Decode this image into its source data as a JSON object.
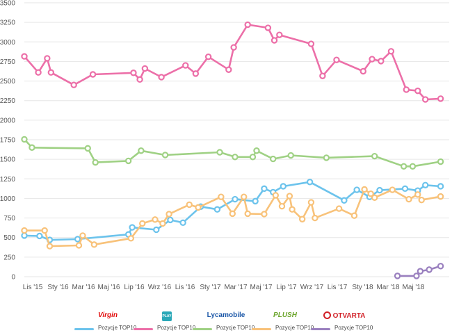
{
  "chart_data": {
    "type": "line",
    "title": "",
    "xlabel": "",
    "ylabel": "",
    "ylim": [
      0,
      3500
    ],
    "yticks": [
      0,
      250,
      500,
      750,
      1000,
      1250,
      1500,
      1750,
      2000,
      2250,
      2500,
      2750,
      3000,
      3250,
      3500
    ],
    "xticks": [
      "Lis '15",
      "Sty '16",
      "Mar '16",
      "Maj '16",
      "Lip '16",
      "Wrz '16",
      "Lis '16",
      "Sty '17",
      "Mar '17",
      "Maj '17",
      "Lip '17",
      "Wrz '17",
      "Lis '17",
      "Sty '18",
      "Mar '18",
      "Maj '18"
    ],
    "xlim": [
      0,
      31.5
    ],
    "grid": true,
    "legend_position": "bottom",
    "series": [
      {
        "name": "Pozycje TOP10",
        "brand": "Virgin Mobile",
        "color": "#6cc3ec",
        "points": [
          [
            0,
            525
          ],
          [
            1.2,
            520
          ],
          [
            2.0,
            470
          ],
          [
            4.2,
            480
          ],
          [
            8.2,
            540
          ],
          [
            8.5,
            630
          ],
          [
            10.4,
            600
          ],
          [
            11.5,
            725
          ],
          [
            12.5,
            690
          ],
          [
            13.9,
            895
          ],
          [
            15.2,
            860
          ],
          [
            16.6,
            990
          ],
          [
            18.2,
            965
          ],
          [
            18.9,
            1125
          ],
          [
            19.6,
            1080
          ],
          [
            20.4,
            1155
          ],
          [
            22.5,
            1210
          ],
          [
            25.2,
            975
          ],
          [
            26.2,
            1110
          ],
          [
            27.2,
            1020
          ],
          [
            28.0,
            1105
          ],
          [
            30.0,
            1125
          ],
          [
            31.0,
            1100
          ],
          [
            31.6,
            1170
          ],
          [
            32.8,
            1155
          ]
        ]
      },
      {
        "name": "Pozycje TOP10",
        "brand": "Play",
        "color": "#ec6fa8",
        "points": [
          [
            0,
            2815
          ],
          [
            1.1,
            2610
          ],
          [
            1.8,
            2790
          ],
          [
            2.1,
            2610
          ],
          [
            3.9,
            2450
          ],
          [
            5.4,
            2585
          ],
          [
            8.6,
            2605
          ],
          [
            9.1,
            2520
          ],
          [
            9.5,
            2660
          ],
          [
            10.8,
            2550
          ],
          [
            12.7,
            2700
          ],
          [
            13.5,
            2595
          ],
          [
            14.5,
            2810
          ],
          [
            16.1,
            2645
          ],
          [
            16.5,
            2930
          ],
          [
            17.6,
            3220
          ],
          [
            19.2,
            3180
          ],
          [
            19.7,
            3020
          ],
          [
            20.1,
            3090
          ],
          [
            22.6,
            2975
          ],
          [
            23.5,
            2565
          ],
          [
            24.6,
            2770
          ],
          [
            26.7,
            2625
          ],
          [
            27.4,
            2780
          ],
          [
            28.1,
            2755
          ],
          [
            28.9,
            2880
          ],
          [
            30.1,
            2390
          ],
          [
            31.0,
            2375
          ],
          [
            31.6,
            2265
          ],
          [
            32.8,
            2275
          ]
        ]
      },
      {
        "name": "Pozycje TOP10",
        "brand": "Lycamobile",
        "color": "#9fd184",
        "points": [
          [
            0,
            1755
          ],
          [
            0.6,
            1650
          ],
          [
            5.0,
            1640
          ],
          [
            5.6,
            1460
          ],
          [
            8.2,
            1480
          ],
          [
            9.2,
            1610
          ],
          [
            11.1,
            1555
          ],
          [
            15.4,
            1590
          ],
          [
            16.6,
            1530
          ],
          [
            18.0,
            1530
          ],
          [
            18.3,
            1610
          ],
          [
            19.6,
            1505
          ],
          [
            21.0,
            1550
          ],
          [
            23.8,
            1520
          ],
          [
            27.6,
            1540
          ],
          [
            29.9,
            1410
          ],
          [
            30.6,
            1410
          ],
          [
            32.8,
            1470
          ]
        ]
      },
      {
        "name": "Pozycje TOP10",
        "brand": "Plush",
        "color": "#f8c27a",
        "points": [
          [
            0,
            590
          ],
          [
            1.6,
            590
          ],
          [
            2.0,
            390
          ],
          [
            4.3,
            400
          ],
          [
            4.6,
            525
          ],
          [
            5.5,
            410
          ],
          [
            8.4,
            490
          ],
          [
            9.3,
            680
          ],
          [
            10.3,
            730
          ],
          [
            10.9,
            680
          ],
          [
            11.4,
            800
          ],
          [
            13.0,
            920
          ],
          [
            13.7,
            885
          ],
          [
            15.5,
            1020
          ],
          [
            16.4,
            805
          ],
          [
            17.3,
            1020
          ],
          [
            17.6,
            805
          ],
          [
            18.9,
            800
          ],
          [
            19.8,
            1040
          ],
          [
            20.3,
            900
          ],
          [
            20.9,
            1030
          ],
          [
            21.1,
            860
          ],
          [
            21.9,
            735
          ],
          [
            22.6,
            950
          ],
          [
            22.9,
            750
          ],
          [
            24.8,
            870
          ],
          [
            26.0,
            780
          ],
          [
            26.8,
            1115
          ],
          [
            27.3,
            1060
          ],
          [
            27.6,
            1010
          ],
          [
            29.0,
            1110
          ],
          [
            30.3,
            990
          ],
          [
            31.0,
            1050
          ],
          [
            31.3,
            980
          ],
          [
            32.8,
            1025
          ]
        ]
      },
      {
        "name": "Pozycje TOP10",
        "brand": "Otvarta",
        "color": "#9a80bf",
        "points": [
          [
            29.4,
            10
          ],
          [
            30.9,
            10
          ],
          [
            31.2,
            70
          ],
          [
            31.9,
            90
          ],
          [
            32.8,
            135
          ]
        ]
      }
    ]
  },
  "legend": [
    {
      "brand": "Virgin Mobile",
      "logo_text": "Virgin",
      "logo_color": "#e10a0a",
      "label": "Pozycje TOP10",
      "color": "#6cc3ec"
    },
    {
      "brand": "Play",
      "logo_text": "PLAY",
      "logo_color": "#2aa8b8",
      "label": "Pozycje TOP10",
      "color": "#ec6fa8"
    },
    {
      "brand": "Lycamobile",
      "logo_text": "Lycamobile",
      "logo_color": "#1a56a7",
      "label": "Pozycje TOP10",
      "color": "#9fd184"
    },
    {
      "brand": "Plush",
      "logo_text": "PLUSH",
      "logo_color": "#6ca52c",
      "label": "Pozycje TOP10",
      "color": "#f8c27a"
    },
    {
      "brand": "Otvarta",
      "logo_text": "OTVARTA",
      "logo_color": "#d11f26",
      "label": "Pozycje TOP10",
      "color": "#9a80bf"
    }
  ]
}
